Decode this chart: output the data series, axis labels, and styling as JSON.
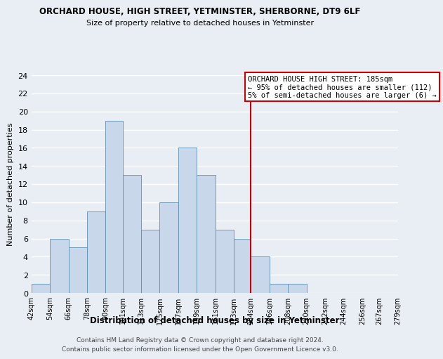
{
  "title": "ORCHARD HOUSE, HIGH STREET, YETMINSTER, SHERBORNE, DT9 6LF",
  "subtitle": "Size of property relative to detached houses in Yetminster",
  "xlabel": "Distribution of detached houses by size in Yetminster",
  "ylabel": "Number of detached properties",
  "bin_edges": [
    42,
    54,
    66,
    78,
    90,
    101,
    113,
    125,
    137,
    149,
    161,
    173,
    184,
    196,
    208,
    220,
    232,
    244,
    256,
    267,
    279
  ],
  "bin_counts": [
    1,
    6,
    5,
    9,
    19,
    13,
    7,
    10,
    16,
    13,
    7,
    6,
    4,
    1,
    1,
    0,
    0,
    0,
    0,
    0
  ],
  "bar_color": "#c8d8ea",
  "bar_edgecolor": "#6090b0",
  "vline_x": 184,
  "vline_color": "#cc0000",
  "annotation_title": "ORCHARD HOUSE HIGH STREET: 185sqm",
  "annotation_line1": "← 95% of detached houses are smaller (112)",
  "annotation_line2": "5% of semi-detached houses are larger (6) →",
  "annotation_box_edgecolor": "#cc0000",
  "ylim": [
    0,
    24
  ],
  "yticks": [
    0,
    2,
    4,
    6,
    8,
    10,
    12,
    14,
    16,
    18,
    20,
    22,
    24
  ],
  "tick_labels": [
    "42sqm",
    "54sqm",
    "66sqm",
    "78sqm",
    "90sqm",
    "101sqm",
    "113sqm",
    "125sqm",
    "137sqm",
    "149sqm",
    "161sqm",
    "173sqm",
    "184sqm",
    "196sqm",
    "208sqm",
    "220sqm",
    "232sqm",
    "244sqm",
    "256sqm",
    "267sqm",
    "279sqm"
  ],
  "footer_line1": "Contains HM Land Registry data © Crown copyright and database right 2024.",
  "footer_line2": "Contains public sector information licensed under the Open Government Licence v3.0.",
  "background_color": "#e8eef4",
  "grid_color": "#ffffff"
}
